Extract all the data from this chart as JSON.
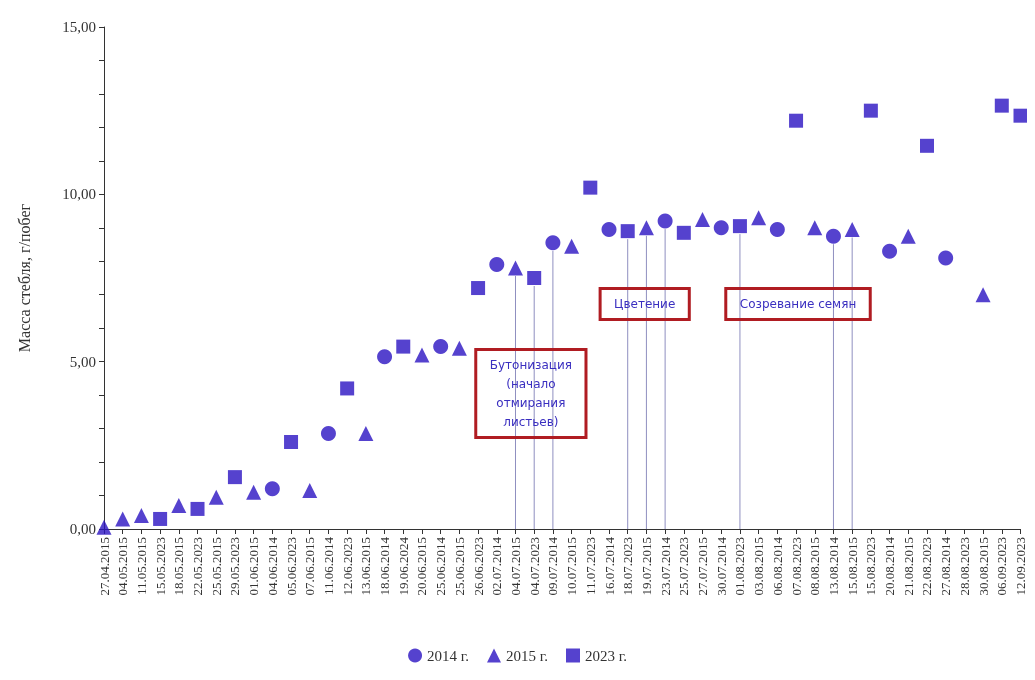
{
  "chart_data": {
    "type": "scatter",
    "ylabel": "Масса стебля, г/побег",
    "categories": [
      "27.04.2015",
      "04.05.2015",
      "11.05.2015",
      "15.05.2023",
      "18.05.2015",
      "22.05.2023",
      "25.05.2015",
      "29.05.2023",
      "01.06.2015",
      "04.06.2014",
      "05.06.2023",
      "07.06.2015",
      "11.06.2014",
      "12.06.2023",
      "13.06.2015",
      "18.06.2014",
      "19.06.2024",
      "20.06.2015",
      "25.06.2014",
      "25.06.2015",
      "26.06.2023",
      "02.07.2014",
      "04.07.2015",
      "04.07.2023",
      "09.07.2014",
      "10.07.2015",
      "11.07.2023",
      "16.07.2014",
      "18.07.2023",
      "19.07.2015",
      "23.07.2014",
      "25.07.2023",
      "27.07.2015",
      "30.07.2014",
      "01.08.2023",
      "03.08.2015",
      "06.08.2014",
      "07.08.2023",
      "08.08.2015",
      "13.08.2014",
      "15.08.2015",
      "15.08.2023",
      "20.08.2014",
      "21.08.2015",
      "22.08.2023",
      "27.08.2014",
      "28.08.2023",
      "30.08.2015",
      "06.09.2023",
      "12.09.2023"
    ],
    "series": [
      {
        "name": "2014 г.",
        "color": "#2a13c2",
        "marker": "circle",
        "values": [
          null,
          null,
          null,
          null,
          null,
          null,
          null,
          null,
          null,
          1.2,
          null,
          null,
          2.85,
          null,
          null,
          5.15,
          null,
          null,
          5.45,
          null,
          null,
          7.9,
          null,
          null,
          8.55,
          null,
          null,
          8.95,
          null,
          null,
          9.2,
          null,
          null,
          9.0,
          null,
          null,
          8.95,
          null,
          null,
          8.75,
          null,
          null,
          8.3,
          null,
          null,
          8.1,
          null,
          null,
          null,
          null
        ]
      },
      {
        "name": "2015 г.",
        "color": "#2a13c2",
        "marker": "triangle",
        "values": [
          0.05,
          0.3,
          0.4,
          null,
          0.7,
          null,
          0.95,
          null,
          1.1,
          null,
          null,
          1.15,
          null,
          null,
          2.85,
          null,
          null,
          5.2,
          null,
          5.4,
          null,
          null,
          7.8,
          null,
          null,
          8.45,
          null,
          null,
          null,
          9.0,
          null,
          null,
          9.25,
          null,
          null,
          9.3,
          null,
          null,
          9.0,
          null,
          8.95,
          null,
          null,
          8.75,
          null,
          null,
          null,
          7.0,
          null,
          null
        ]
      },
      {
        "name": "2023 г.",
        "color": "#2a13c2",
        "marker": "square",
        "values": [
          null,
          null,
          null,
          0.3,
          null,
          0.6,
          null,
          1.55,
          null,
          null,
          2.6,
          null,
          null,
          4.2,
          null,
          null,
          5.45,
          null,
          null,
          null,
          7.2,
          null,
          null,
          7.5,
          null,
          null,
          10.2,
          null,
          8.9,
          null,
          null,
          8.85,
          null,
          null,
          9.05,
          null,
          null,
          12.2,
          null,
          null,
          null,
          12.5,
          null,
          null,
          11.45,
          null,
          null,
          null,
          12.65,
          12.35
        ]
      }
    ],
    "ylim": [
      0,
      15
    ],
    "yticks": [
      {
        "value": 0,
        "label": "0,00"
      },
      {
        "value": 1,
        "label": null
      },
      {
        "value": 2,
        "label": null
      },
      {
        "value": 3,
        "label": null
      },
      {
        "value": 4,
        "label": null
      },
      {
        "value": 5,
        "label": "5,00"
      },
      {
        "value": 6,
        "label": null
      },
      {
        "value": 7,
        "label": null
      },
      {
        "value": 8,
        "label": null
      },
      {
        "value": 9,
        "label": null
      },
      {
        "value": 10,
        "label": "10,00"
      },
      {
        "value": 11,
        "label": null
      },
      {
        "value": 12,
        "label": null
      },
      {
        "value": 13,
        "label": null
      },
      {
        "value": 14,
        "label": null
      },
      {
        "value": 15,
        "label": "15,00"
      }
    ],
    "annotations": [
      "Бутонизация (начало отмирания листьев)",
      "Цветение",
      "Созревание семян"
    ],
    "grid": false,
    "legend": "bottom"
  }
}
